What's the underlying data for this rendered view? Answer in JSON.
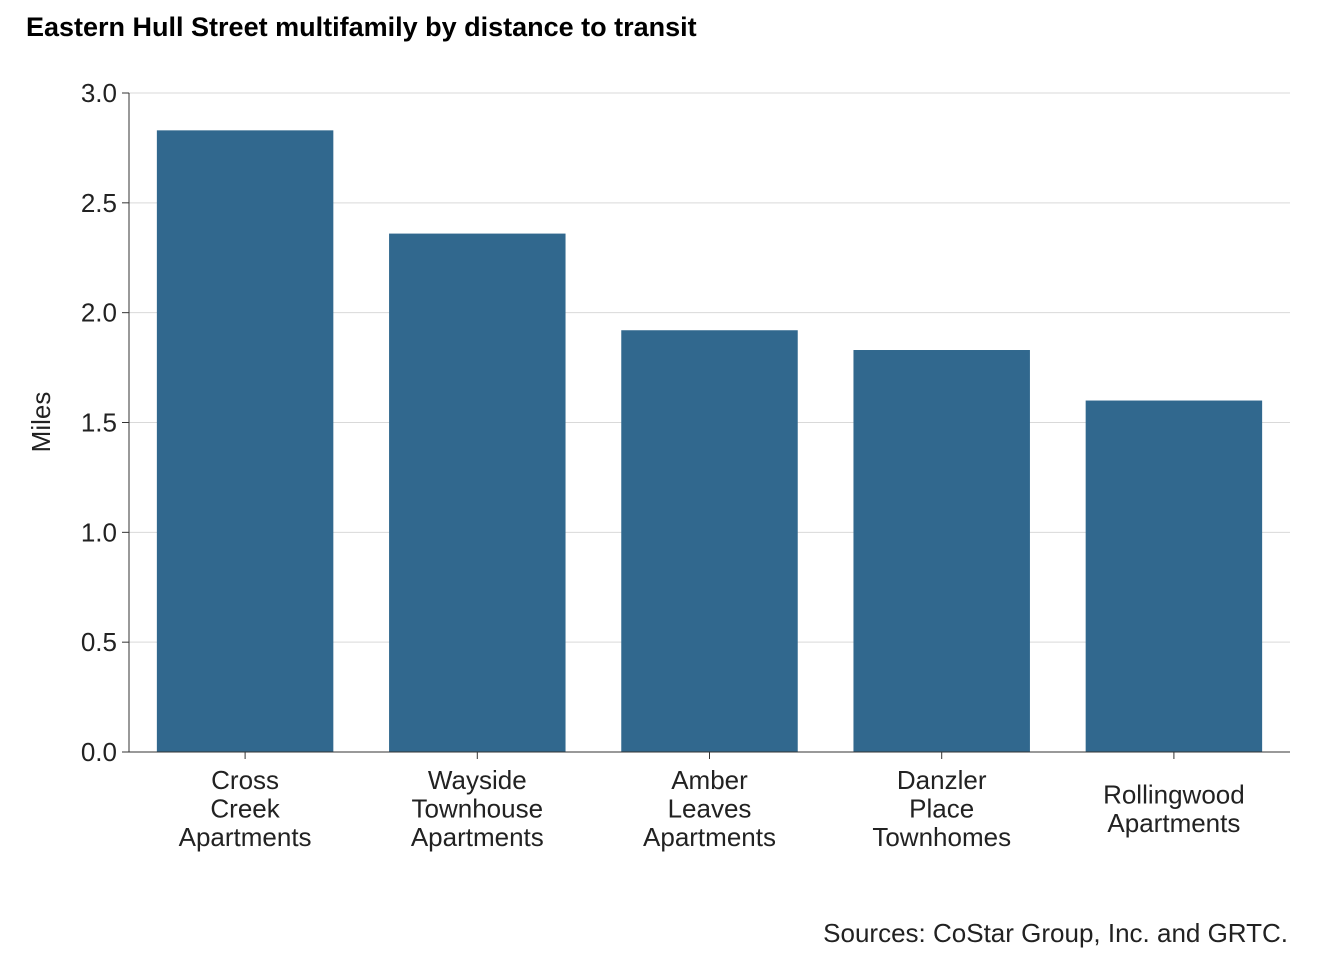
{
  "chart_data": {
    "type": "bar",
    "title": "Eastern Hull Street multifamily by distance to transit",
    "xlabel": "",
    "ylabel": "Miles",
    "caption": "Sources: CoStar Group, Inc. and GRTC.",
    "categories": [
      [
        "Cross",
        "Creek",
        "Apartments"
      ],
      [
        "Wayside",
        "Townhouse",
        "Apartments"
      ],
      [
        "Amber",
        "Leaves",
        "Apartments"
      ],
      [
        "Danzler",
        "Place",
        "Townhomes"
      ],
      [
        "Rollingwood",
        "Apartments"
      ]
    ],
    "values": [
      2.83,
      2.36,
      1.92,
      1.83,
      1.6
    ],
    "ylim": [
      0,
      3.0
    ],
    "yticks": [
      "0.0",
      "0.5",
      "1.0",
      "1.5",
      "2.0",
      "2.5",
      "3.0"
    ],
    "grid": "horizontal major",
    "legend": "none",
    "colors": {
      "bar": "#31688e",
      "grid": "#d9d9d9",
      "axis": "#333333"
    }
  }
}
